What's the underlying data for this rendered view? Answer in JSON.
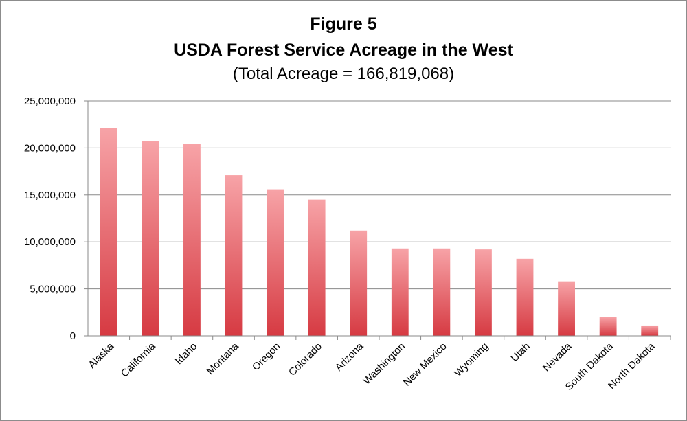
{
  "chart_data": {
    "type": "bar",
    "title": "Figure 5",
    "subtitle": "USDA Forest Service Acreage in the West",
    "subtitle2": "(Total Acreage = 166,819,068)",
    "xlabel": "",
    "ylabel": "",
    "ylim": [
      0,
      25000000
    ],
    "yticks": [
      0,
      5000000,
      10000000,
      15000000,
      20000000,
      25000000
    ],
    "ytick_labels": [
      "0",
      "5,000,000",
      "10,000,000",
      "15,000,000",
      "20,000,000",
      "25,000,000"
    ],
    "grid": true,
    "legend": "none",
    "categories": [
      "Alaska",
      "California",
      "Idaho",
      "Montana",
      "Oregon",
      "Colorado",
      "Arizona",
      "Washington",
      "New Mexico",
      "Wyoming",
      "Utah",
      "Nevada",
      "South Dakota",
      "North Dakota"
    ],
    "values": [
      22100000,
      20700000,
      20400000,
      17100000,
      15600000,
      14500000,
      11200000,
      9300000,
      9300000,
      9200000,
      8200000,
      5800000,
      2000000,
      1100000
    ],
    "colors": {
      "bar_top": "#f7a3a7",
      "bar_bottom": "#d63a42",
      "grid": "#8a8a8a",
      "axis": "#8a8a8a"
    }
  }
}
